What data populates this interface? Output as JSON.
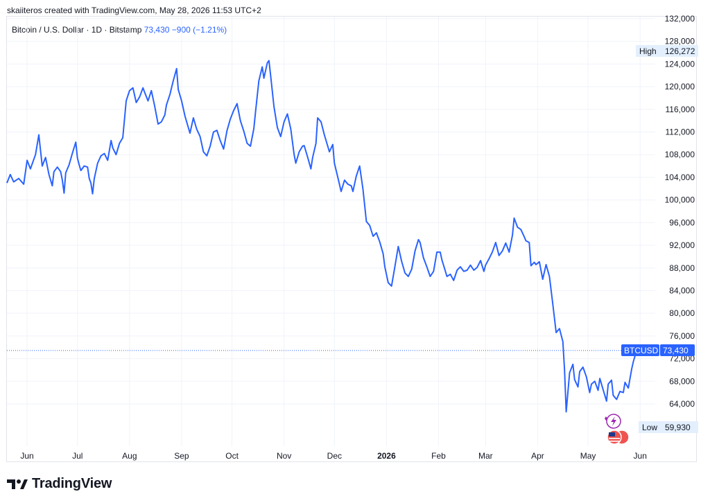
{
  "header": {
    "credit": "skaiiteros created with TradingView.com, May 28, 2026 11:53 UTC+2",
    "symbol": "Bitcoin / U.S. Dollar · 1D · Bitstamp",
    "last_price": "73,430",
    "change": "−900 (−1.21%)"
  },
  "footer": {
    "brand": "TradingView"
  },
  "colors": {
    "line": "#2962ff",
    "grid": "#f0f3fa",
    "label_bg": "#2962ff",
    "tag_bg": "#e3effd"
  },
  "chart_data": {
    "type": "line",
    "series": [
      {
        "name": "BTCUSD",
        "points": [
          [
            "2025-05-20",
            103000
          ],
          [
            "2025-05-22",
            104500
          ],
          [
            "2025-05-24",
            103200
          ],
          [
            "2025-05-27",
            103800
          ],
          [
            "2025-05-30",
            102800
          ],
          [
            "2025-06-01",
            107000
          ],
          [
            "2025-06-03",
            105500
          ],
          [
            "2025-06-06",
            108000
          ],
          [
            "2025-06-08",
            111500
          ],
          [
            "2025-06-10",
            106000
          ],
          [
            "2025-06-12",
            107500
          ],
          [
            "2025-06-14",
            104500
          ],
          [
            "2025-06-16",
            102500
          ],
          [
            "2025-06-17",
            105000
          ],
          [
            "2025-06-19",
            105800
          ],
          [
            "2025-06-21",
            105000
          ],
          [
            "2025-06-22",
            103500
          ],
          [
            "2025-06-23",
            101200
          ],
          [
            "2025-06-24",
            104800
          ],
          [
            "2025-06-26",
            106200
          ],
          [
            "2025-06-28",
            108300
          ],
          [
            "2025-06-30",
            110200
          ],
          [
            "2025-07-01",
            107400
          ],
          [
            "2025-07-02",
            106200
          ],
          [
            "2025-07-03",
            105200
          ],
          [
            "2025-07-05",
            106000
          ],
          [
            "2025-07-07",
            105800
          ],
          [
            "2025-07-08",
            103800
          ],
          [
            "2025-07-09",
            103000
          ],
          [
            "2025-07-10",
            101100
          ],
          [
            "2025-07-11",
            103800
          ],
          [
            "2025-07-13",
            106500
          ],
          [
            "2025-07-15",
            107800
          ],
          [
            "2025-07-17",
            108200
          ],
          [
            "2025-07-19",
            107000
          ],
          [
            "2025-07-21",
            110500
          ],
          [
            "2025-07-22",
            109200
          ],
          [
            "2025-07-24",
            108000
          ],
          [
            "2025-07-26",
            110000
          ],
          [
            "2025-07-28",
            111000
          ],
          [
            "2025-07-30",
            117500
          ],
          [
            "2025-08-01",
            119300
          ],
          [
            "2025-08-03",
            119800
          ],
          [
            "2025-08-05",
            117200
          ],
          [
            "2025-08-07",
            118200
          ],
          [
            "2025-08-09",
            119800
          ],
          [
            "2025-08-10",
            119000
          ],
          [
            "2025-08-12",
            117500
          ],
          [
            "2025-08-14",
            119300
          ],
          [
            "2025-08-16",
            116500
          ],
          [
            "2025-08-18",
            113400
          ],
          [
            "2025-08-20",
            113800
          ],
          [
            "2025-08-22",
            115000
          ],
          [
            "2025-08-23",
            116800
          ],
          [
            "2025-08-25",
            118600
          ],
          [
            "2025-08-27",
            121000
          ],
          [
            "2025-08-29",
            123200
          ],
          [
            "2025-08-30",
            119500
          ],
          [
            "2025-09-01",
            117500
          ],
          [
            "2025-09-03",
            114800
          ],
          [
            "2025-09-05",
            112800
          ],
          [
            "2025-09-06",
            111800
          ],
          [
            "2025-09-08",
            114500
          ],
          [
            "2025-09-10",
            112500
          ],
          [
            "2025-09-12",
            111200
          ],
          [
            "2025-09-14",
            108500
          ],
          [
            "2025-09-16",
            107800
          ],
          [
            "2025-09-18",
            109500
          ],
          [
            "2025-09-20",
            112000
          ],
          [
            "2025-09-22",
            112300
          ],
          [
            "2025-09-24",
            110500
          ],
          [
            "2025-09-26",
            109000
          ],
          [
            "2025-09-28",
            112200
          ],
          [
            "2025-09-30",
            114300
          ],
          [
            "2025-10-02",
            115800
          ],
          [
            "2025-10-04",
            117000
          ],
          [
            "2025-10-06",
            114000
          ],
          [
            "2025-10-08",
            112200
          ],
          [
            "2025-10-10",
            110000
          ],
          [
            "2025-10-12",
            109500
          ],
          [
            "2025-10-14",
            112600
          ],
          [
            "2025-10-15",
            115500
          ],
          [
            "2025-10-17",
            121000
          ],
          [
            "2025-10-19",
            123500
          ],
          [
            "2025-10-20",
            121500
          ],
          [
            "2025-10-22",
            124200
          ],
          [
            "2025-10-23",
            124600
          ],
          [
            "2025-10-24",
            122000
          ],
          [
            "2025-10-26",
            116500
          ],
          [
            "2025-10-28",
            112800
          ],
          [
            "2025-10-30",
            111200
          ],
          [
            "2025-11-01",
            113800
          ],
          [
            "2025-11-03",
            115200
          ],
          [
            "2025-11-05",
            112500
          ],
          [
            "2025-11-07",
            108000
          ],
          [
            "2025-11-08",
            106500
          ],
          [
            "2025-11-10",
            108500
          ],
          [
            "2025-11-12",
            109500
          ],
          [
            "2025-11-13",
            109600
          ],
          [
            "2025-11-15",
            107600
          ],
          [
            "2025-11-17",
            105500
          ],
          [
            "2025-11-18",
            107500
          ],
          [
            "2025-11-20",
            110000
          ],
          [
            "2025-11-21",
            114500
          ],
          [
            "2025-11-23",
            113800
          ],
          [
            "2025-11-25",
            111500
          ],
          [
            "2025-11-27",
            109500
          ],
          [
            "2025-11-28",
            108500
          ],
          [
            "2025-11-30",
            109800
          ],
          [
            "2025-12-01",
            106500
          ],
          [
            "2025-12-03",
            104000
          ],
          [
            "2025-12-05",
            101500
          ],
          [
            "2025-12-07",
            103500
          ],
          [
            "2025-12-09",
            102800
          ],
          [
            "2025-12-11",
            102500
          ],
          [
            "2025-12-12",
            101500
          ],
          [
            "2025-12-14",
            104200
          ],
          [
            "2025-12-16",
            106000
          ],
          [
            "2025-12-18",
            101900
          ],
          [
            "2025-12-20",
            96200
          ],
          [
            "2025-12-22",
            95500
          ],
          [
            "2025-12-24",
            93600
          ],
          [
            "2025-12-26",
            94200
          ],
          [
            "2025-12-28",
            92600
          ],
          [
            "2025-12-30",
            90500
          ],
          [
            "2025-12-31",
            88200
          ],
          [
            "2026-01-02",
            85400
          ],
          [
            "2026-01-04",
            84800
          ],
          [
            "2026-01-06",
            88200
          ],
          [
            "2026-01-08",
            91800
          ],
          [
            "2026-01-10",
            89200
          ],
          [
            "2026-01-12",
            87100
          ],
          [
            "2026-01-14",
            86500
          ],
          [
            "2026-01-16",
            87800
          ],
          [
            "2026-01-18",
            91000
          ],
          [
            "2026-01-20",
            93000
          ],
          [
            "2026-01-21",
            92500
          ],
          [
            "2026-01-23",
            89800
          ],
          [
            "2026-01-25",
            88200
          ],
          [
            "2026-01-27",
            86500
          ],
          [
            "2026-01-29",
            87400
          ],
          [
            "2026-01-31",
            90800
          ],
          [
            "2026-02-02",
            90800
          ],
          [
            "2026-02-03",
            89400
          ],
          [
            "2026-02-05",
            87500
          ],
          [
            "2026-02-06",
            86500
          ],
          [
            "2026-02-08",
            86900
          ],
          [
            "2026-02-10",
            85800
          ],
          [
            "2026-02-12",
            87600
          ],
          [
            "2026-02-14",
            88200
          ],
          [
            "2026-02-16",
            87400
          ],
          [
            "2026-02-18",
            87600
          ],
          [
            "2026-02-20",
            88500
          ],
          [
            "2026-02-22",
            87600
          ],
          [
            "2026-02-24",
            88100
          ],
          [
            "2026-02-26",
            89300
          ],
          [
            "2026-02-28",
            87400
          ],
          [
            "2026-03-01",
            88500
          ],
          [
            "2026-03-03",
            89600
          ],
          [
            "2026-03-05",
            90800
          ],
          [
            "2026-03-07",
            92500
          ],
          [
            "2026-03-09",
            90200
          ],
          [
            "2026-03-11",
            91000
          ],
          [
            "2026-03-13",
            92400
          ],
          [
            "2026-03-15",
            90800
          ],
          [
            "2026-03-17",
            93800
          ],
          [
            "2026-03-18",
            96800
          ],
          [
            "2026-03-20",
            95200
          ],
          [
            "2026-03-22",
            94800
          ],
          [
            "2026-03-24",
            93500
          ],
          [
            "2026-03-25",
            92800
          ],
          [
            "2026-03-27",
            92500
          ],
          [
            "2026-03-28",
            88400
          ],
          [
            "2026-03-30",
            89000
          ],
          [
            "2026-03-31",
            88600
          ],
          [
            "2026-04-02",
            89100
          ],
          [
            "2026-04-04",
            86000
          ],
          [
            "2026-04-06",
            88600
          ],
          [
            "2026-04-08",
            86500
          ],
          [
            "2026-04-10",
            81700
          ],
          [
            "2026-04-12",
            76600
          ],
          [
            "2026-04-14",
            77300
          ],
          [
            "2026-04-16",
            75000
          ],
          [
            "2026-04-17",
            70000
          ],
          [
            "2026-04-18",
            62600
          ],
          [
            "2026-04-20",
            69500
          ],
          [
            "2026-04-22",
            71000
          ],
          [
            "2026-04-23",
            68300
          ],
          [
            "2026-04-25",
            67000
          ],
          [
            "2026-04-26",
            69700
          ],
          [
            "2026-04-28",
            70500
          ],
          [
            "2026-04-30",
            68800
          ],
          [
            "2026-05-02",
            66000
          ],
          [
            "2026-05-03",
            67500
          ],
          [
            "2026-05-05",
            68000
          ],
          [
            "2026-05-07",
            66400
          ],
          [
            "2026-05-08",
            68500
          ],
          [
            "2026-05-10",
            66500
          ],
          [
            "2026-05-12",
            64500
          ],
          [
            "2026-05-13",
            67500
          ],
          [
            "2026-05-15",
            68200
          ],
          [
            "2026-05-16",
            65500
          ],
          [
            "2026-05-18",
            64800
          ],
          [
            "2026-05-20",
            66200
          ],
          [
            "2026-05-22",
            66000
          ],
          [
            "2026-05-23",
            67800
          ],
          [
            "2026-05-25",
            66800
          ],
          [
            "2026-05-27",
            70200
          ],
          [
            "2026-05-28",
            71500
          ],
          [
            "2026-05-30",
            73500
          ]
        ]
      }
    ],
    "y_ticks": [
      "132,000",
      "128,000",
      "124,000",
      "120,000",
      "116,000",
      "112,000",
      "108,000",
      "104,000",
      "100,000",
      "96,000",
      "92,000",
      "88,000",
      "84,000",
      "80,000",
      "76,000",
      "72,000",
      "68,000",
      "64,000"
    ],
    "x_ticks": [
      {
        "label": "Jun",
        "date": "2025-06-01"
      },
      {
        "label": "Jul",
        "date": "2025-07-01"
      },
      {
        "label": "Aug",
        "date": "2025-08-01"
      },
      {
        "label": "Sep",
        "date": "2025-09-01"
      },
      {
        "label": "Oct",
        "date": "2025-10-01"
      },
      {
        "label": "Nov",
        "date": "2025-11-01"
      },
      {
        "label": "Dec",
        "date": "2025-12-01"
      },
      {
        "label": "2026",
        "date": "2026-01-01",
        "bold": true
      },
      {
        "label": "Feb",
        "date": "2026-02-01"
      },
      {
        "label": "Mar",
        "date": "2026-03-01"
      },
      {
        "label": "Apr",
        "date": "2026-04-01"
      },
      {
        "label": "May",
        "date": "2026-05-01"
      },
      {
        "label": "Jun",
        "date": "2026-06-01"
      }
    ],
    "high": {
      "label": "High",
      "value": "126,272"
    },
    "low": {
      "label": "Low",
      "value": "59,930"
    },
    "last": {
      "label": "BTCUSD",
      "value": "73,430",
      "y": 73430
    },
    "grid": true
  }
}
